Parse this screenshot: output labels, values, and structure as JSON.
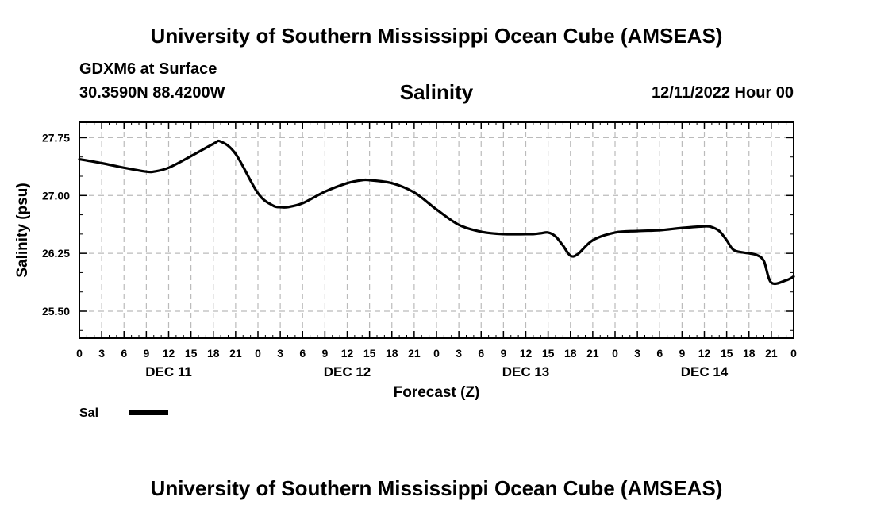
{
  "header": {
    "title": "University of Southern Mississippi Ocean Cube (AMSEAS)",
    "station": "GDXM6 at Surface",
    "coords": "30.3590N  88.4200W",
    "variable": "Salinity",
    "date": "12/11/2022 Hour 00"
  },
  "footer": {
    "title": "University of Southern Mississippi Ocean Cube (AMSEAS)"
  },
  "chart_data": {
    "type": "line",
    "title": "Salinity",
    "xlabel": "Forecast (Z)",
    "ylabel": "Salinity (psu)",
    "xlim": [
      0,
      96
    ],
    "ylim": [
      25.15,
      27.95
    ],
    "yticks": [
      25.5,
      26.25,
      27.0,
      27.75
    ],
    "ytick_labels": [
      "25.50",
      "26.25",
      "27.00",
      "27.75"
    ],
    "xticks": [
      0,
      3,
      6,
      9,
      12,
      15,
      18,
      21,
      24,
      27,
      30,
      33,
      36,
      39,
      42,
      45,
      48,
      51,
      54,
      57,
      60,
      63,
      66,
      69,
      72,
      75,
      78,
      81,
      84,
      87,
      90,
      93,
      96
    ],
    "xtick_labels": [
      "0",
      "3",
      "6",
      "9",
      "12",
      "15",
      "18",
      "21",
      "0",
      "3",
      "6",
      "9",
      "12",
      "15",
      "18",
      "21",
      "0",
      "3",
      "6",
      "9",
      "12",
      "15",
      "18",
      "21",
      "0",
      "3",
      "6",
      "9",
      "12",
      "15",
      "18",
      "21",
      "0"
    ],
    "day_labels": [
      {
        "label": "DEC 11",
        "x": 12
      },
      {
        "label": "DEC 12",
        "x": 36
      },
      {
        "label": "DEC 13",
        "x": 60
      },
      {
        "label": "DEC 14",
        "x": 84
      }
    ],
    "grid": true,
    "legend_position": "bottom-left",
    "series": [
      {
        "name": "Sal",
        "color": "#000000",
        "x": [
          0,
          3,
          6,
          9,
          10,
          12,
          15,
          18,
          19,
          21,
          24,
          26,
          27,
          28,
          30,
          33,
          36,
          38,
          39,
          42,
          45,
          48,
          51,
          54,
          57,
          60,
          61,
          62,
          63,
          64,
          65,
          66,
          67,
          69,
          72,
          75,
          78,
          81,
          84,
          85,
          86,
          87,
          88,
          90,
          91,
          92,
          93,
          95,
          96
        ],
        "values": [
          27.47,
          27.42,
          27.36,
          27.31,
          27.31,
          27.36,
          27.51,
          27.67,
          27.7,
          27.54,
          27.03,
          26.87,
          26.85,
          26.85,
          26.9,
          27.05,
          27.16,
          27.2,
          27.2,
          27.16,
          27.04,
          26.82,
          26.62,
          26.53,
          26.5,
          26.5,
          26.5,
          26.51,
          26.52,
          26.47,
          26.35,
          26.22,
          26.24,
          26.42,
          26.52,
          26.54,
          26.55,
          26.58,
          26.6,
          26.59,
          26.54,
          26.42,
          26.29,
          26.25,
          26.23,
          26.15,
          25.87,
          25.9,
          25.95
        ]
      }
    ]
  }
}
